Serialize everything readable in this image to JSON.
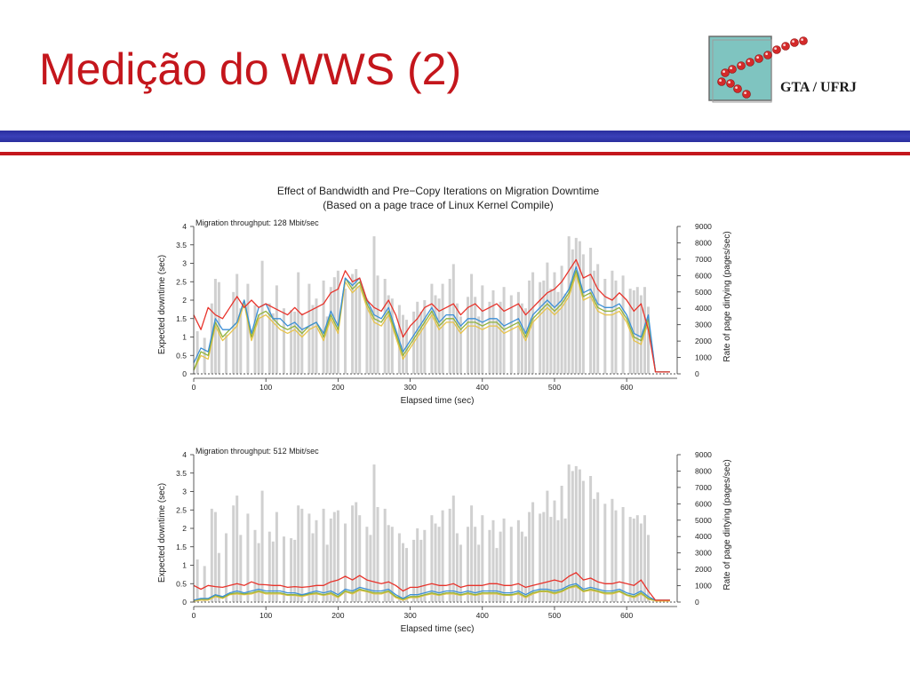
{
  "slide": {
    "title": "Medição do WWS (2)",
    "title_color": "#c4161c",
    "logo_text": "GTA / UFRJ",
    "logo_colors": {
      "square": "#7fc4c0",
      "dots": "#d42a2a"
    },
    "rule_colors": {
      "blue": "#2e34a8",
      "red": "#c4161c"
    }
  },
  "figure": {
    "title_line1": "Effect of Bandwidth and Pre−Copy Iterations on Migration Downtime",
    "title_line2": "(Based on a page trace of Linux Kernel Compile)"
  },
  "chart_data": [
    {
      "type": "line",
      "annotation": "Migration throughput: 128 Mbit/sec",
      "xlabel": "Elapsed time (sec)",
      "ylabel": "Expected downtime (sec)",
      "y2label": "Rate of page dirtying (pages/sec)",
      "xlim": [
        0,
        670
      ],
      "ylim": [
        0,
        4
      ],
      "y2lim": [
        0,
        9000
      ],
      "xticks": [
        "0",
        "100",
        "200",
        "300",
        "400",
        "500",
        "600"
      ],
      "yticks": [
        "0",
        "0.5",
        "1",
        "1.5",
        "2",
        "2.5",
        "3",
        "3.5",
        "4"
      ],
      "y2ticks": [
        "0",
        "1000",
        "2000",
        "3000",
        "4000",
        "5000",
        "6000",
        "7000",
        "8000",
        "9000"
      ],
      "colors": {
        "red": "#e8332b",
        "blue": "#3b8fd6",
        "green": "#8fb23a",
        "yellow": "#e8c34a",
        "bars": "#d0d0d0"
      },
      "x": [
        0,
        10,
        20,
        30,
        40,
        50,
        60,
        70,
        80,
        90,
        100,
        110,
        120,
        130,
        140,
        150,
        160,
        170,
        180,
        190,
        200,
        210,
        220,
        230,
        240,
        250,
        260,
        270,
        280,
        290,
        300,
        310,
        320,
        330,
        340,
        350,
        360,
        370,
        380,
        390,
        400,
        410,
        420,
        430,
        440,
        450,
        460,
        470,
        480,
        490,
        500,
        510,
        520,
        530,
        540,
        550,
        560,
        570,
        580,
        590,
        600,
        610,
        620,
        630,
        640,
        650,
        660
      ],
      "series": [
        {
          "name": "",
          "color": "red",
          "values": [
            1.6,
            1.2,
            1.8,
            1.6,
            1.5,
            1.8,
            2.1,
            1.8,
            2.0,
            1.8,
            1.9,
            1.8,
            1.7,
            1.6,
            1.8,
            1.6,
            1.7,
            1.8,
            1.9,
            2.2,
            2.3,
            2.8,
            2.5,
            2.6,
            2.0,
            1.8,
            1.7,
            2.0,
            1.6,
            1.0,
            1.3,
            1.5,
            1.8,
            1.9,
            1.7,
            1.8,
            1.9,
            1.6,
            1.8,
            1.9,
            1.7,
            1.8,
            1.9,
            1.7,
            1.8,
            1.9,
            1.6,
            1.8,
            2.0,
            2.2,
            2.3,
            2.5,
            2.8,
            3.1,
            2.6,
            2.7,
            2.3,
            2.1,
            2.0,
            2.2,
            2.0,
            1.7,
            1.9,
            1.2,
            0.05,
            0.05,
            0.05
          ]
        },
        {
          "name": "",
          "color": "blue",
          "values": [
            0.3,
            0.7,
            0.6,
            1.5,
            1.2,
            1.2,
            1.4,
            2.0,
            1.1,
            1.8,
            1.9,
            1.5,
            1.5,
            1.3,
            1.4,
            1.2,
            1.3,
            1.4,
            1.1,
            1.7,
            1.3,
            2.6,
            2.4,
            2.6,
            2.0,
            1.6,
            1.5,
            1.8,
            1.2,
            0.6,
            0.9,
            1.2,
            1.5,
            1.8,
            1.4,
            1.6,
            1.6,
            1.3,
            1.5,
            1.5,
            1.4,
            1.5,
            1.5,
            1.3,
            1.4,
            1.5,
            1.1,
            1.6,
            1.8,
            2.0,
            1.8,
            2.0,
            2.3,
            2.9,
            2.2,
            2.3,
            1.9,
            1.8,
            1.8,
            1.9,
            1.6,
            1.1,
            1.0,
            1.6,
            0.05,
            0.05,
            0.05
          ]
        },
        {
          "name": "",
          "color": "green",
          "values": [
            0.1,
            0.6,
            0.5,
            1.4,
            1.0,
            1.2,
            1.4,
            2.0,
            1.0,
            1.6,
            1.7,
            1.5,
            1.3,
            1.2,
            1.3,
            1.1,
            1.3,
            1.4,
            1.0,
            1.6,
            1.2,
            2.6,
            2.3,
            2.5,
            1.9,
            1.5,
            1.4,
            1.7,
            1.1,
            0.5,
            0.8,
            1.1,
            1.4,
            1.7,
            1.3,
            1.5,
            1.5,
            1.2,
            1.4,
            1.4,
            1.3,
            1.4,
            1.4,
            1.2,
            1.3,
            1.4,
            1.0,
            1.5,
            1.7,
            1.9,
            1.7,
            1.9,
            2.2,
            2.8,
            2.1,
            2.2,
            1.8,
            1.7,
            1.7,
            1.8,
            1.5,
            1.0,
            0.9,
            1.5,
            0.05,
            0.05,
            0.05
          ]
        },
        {
          "name": "",
          "color": "yellow",
          "values": [
            0.1,
            0.5,
            0.4,
            1.3,
            0.9,
            1.1,
            1.3,
            1.9,
            0.9,
            1.5,
            1.6,
            1.4,
            1.2,
            1.1,
            1.2,
            1.0,
            1.2,
            1.3,
            0.9,
            1.5,
            1.1,
            2.5,
            2.2,
            2.4,
            1.8,
            1.4,
            1.3,
            1.6,
            1.0,
            0.4,
            0.7,
            1.0,
            1.3,
            1.6,
            1.2,
            1.4,
            1.4,
            1.1,
            1.3,
            1.3,
            1.2,
            1.3,
            1.3,
            1.1,
            1.2,
            1.3,
            0.9,
            1.4,
            1.6,
            1.8,
            1.6,
            1.8,
            2.1,
            2.7,
            2.0,
            2.1,
            1.7,
            1.6,
            1.6,
            1.7,
            1.4,
            0.9,
            0.8,
            1.4,
            0.05,
            0.05,
            0.05
          ]
        }
      ],
      "bars_x": [
        5,
        15,
        25,
        30,
        35,
        45,
        55,
        60,
        65,
        75,
        85,
        90,
        95,
        105,
        110,
        115,
        125,
        135,
        140,
        145,
        150,
        160,
        165,
        170,
        180,
        185,
        190,
        195,
        200,
        210,
        220,
        225,
        230,
        240,
        245,
        250,
        255,
        265,
        270,
        275,
        285,
        290,
        295,
        305,
        310,
        315,
        320,
        330,
        335,
        340,
        345,
        355,
        360,
        365,
        370,
        380,
        385,
        390,
        395,
        400,
        410,
        415,
        420,
        425,
        430,
        440,
        450,
        455,
        460,
        465,
        470,
        480,
        485,
        490,
        495,
        500,
        505,
        510,
        515,
        520,
        525,
        530,
        535,
        540,
        550,
        555,
        560,
        570,
        580,
        585,
        595,
        605,
        610,
        615,
        620,
        625,
        630
      ],
      "bars": [
        2600,
        2200,
        4300,
        5800,
        5600,
        2400,
        5000,
        6100,
        4000,
        5500,
        4200,
        3600,
        6900,
        4300,
        3700,
        5400,
        4000,
        3900,
        3800,
        6200,
        3700,
        5500,
        4200,
        4600,
        5700,
        3500,
        5300,
        5900,
        6300,
        5200,
        6100,
        6400,
        5300,
        4600,
        4100,
        8400,
        6000,
        5800,
        4800,
        4600,
        4200,
        3600,
        3300,
        3800,
        4400,
        3800,
        4500,
        5500,
        4800,
        4600,
        5500,
        5800,
        6700,
        4300,
        3500,
        4700,
        6100,
        4700,
        3500,
        5400,
        4400,
        5100,
        3300,
        4400,
        5300,
        4800,
        5000,
        4300,
        4000,
        5700,
        6200,
        5600,
        5700,
        6800,
        5200,
        6200,
        5000,
        6600,
        4900,
        8400,
        7600,
        8300,
        8100,
        7300,
        7700,
        6300,
        6700,
        5800,
        6300,
        5700,
        6000,
        5200,
        5100,
        5300,
        4800,
        5300,
        4100
      ]
    },
    {
      "type": "line",
      "annotation": "Migration throughput: 512 Mbit/sec",
      "xlabel": "Elapsed time (sec)",
      "ylabel": "Expected downtime (sec)",
      "y2label": "Rate of page dirtying (pages/sec)",
      "xlim": [
        0,
        670
      ],
      "ylim": [
        0,
        4
      ],
      "y2lim": [
        0,
        9000
      ],
      "xticks": [
        "0",
        "100",
        "200",
        "300",
        "400",
        "500",
        "600"
      ],
      "yticks": [
        "0",
        "0.5",
        "1",
        "1.5",
        "2",
        "2.5",
        "3",
        "3.5",
        "4"
      ],
      "y2ticks": [
        "0",
        "1000",
        "2000",
        "3000",
        "4000",
        "5000",
        "6000",
        "7000",
        "8000",
        "9000"
      ],
      "colors": {
        "red": "#e8332b",
        "blue": "#3b8fd6",
        "green": "#8fb23a",
        "yellow": "#e8c34a",
        "bars": "#d0d0d0"
      },
      "x": [
        0,
        10,
        20,
        30,
        40,
        50,
        60,
        70,
        80,
        90,
        100,
        110,
        120,
        130,
        140,
        150,
        160,
        170,
        180,
        190,
        200,
        210,
        220,
        230,
        240,
        250,
        260,
        270,
        280,
        290,
        300,
        310,
        320,
        330,
        340,
        350,
        360,
        370,
        380,
        390,
        400,
        410,
        420,
        430,
        440,
        450,
        460,
        470,
        480,
        490,
        500,
        510,
        520,
        530,
        540,
        550,
        560,
        570,
        580,
        590,
        600,
        610,
        620,
        630,
        640,
        650,
        660
      ],
      "series": [
        {
          "name": "",
          "color": "red",
          "values": [
            0.45,
            0.35,
            0.45,
            0.42,
            0.4,
            0.45,
            0.5,
            0.45,
            0.55,
            0.48,
            0.47,
            0.45,
            0.45,
            0.4,
            0.42,
            0.4,
            0.42,
            0.45,
            0.45,
            0.55,
            0.6,
            0.7,
            0.6,
            0.72,
            0.6,
            0.55,
            0.5,
            0.55,
            0.45,
            0.3,
            0.4,
            0.4,
            0.45,
            0.5,
            0.45,
            0.45,
            0.5,
            0.4,
            0.45,
            0.45,
            0.45,
            0.5,
            0.5,
            0.45,
            0.45,
            0.5,
            0.4,
            0.45,
            0.5,
            0.55,
            0.6,
            0.55,
            0.7,
            0.8,
            0.6,
            0.65,
            0.55,
            0.5,
            0.5,
            0.55,
            0.5,
            0.45,
            0.6,
            0.3,
            0.05,
            0.05,
            0.05
          ]
        },
        {
          "name": "",
          "color": "blue",
          "values": [
            0.05,
            0.1,
            0.1,
            0.2,
            0.15,
            0.25,
            0.3,
            0.25,
            0.3,
            0.35,
            0.3,
            0.3,
            0.3,
            0.25,
            0.25,
            0.2,
            0.25,
            0.3,
            0.25,
            0.3,
            0.2,
            0.35,
            0.3,
            0.4,
            0.35,
            0.3,
            0.3,
            0.35,
            0.2,
            0.1,
            0.2,
            0.2,
            0.25,
            0.3,
            0.25,
            0.3,
            0.3,
            0.25,
            0.3,
            0.25,
            0.3,
            0.3,
            0.3,
            0.25,
            0.25,
            0.3,
            0.2,
            0.3,
            0.35,
            0.35,
            0.3,
            0.35,
            0.45,
            0.5,
            0.35,
            0.4,
            0.35,
            0.3,
            0.3,
            0.35,
            0.25,
            0.2,
            0.3,
            0.15,
            0.05,
            0.05,
            0.05
          ]
        },
        {
          "name": "",
          "color": "green",
          "values": [
            0.05,
            0.08,
            0.08,
            0.18,
            0.12,
            0.22,
            0.25,
            0.22,
            0.25,
            0.3,
            0.25,
            0.25,
            0.25,
            0.2,
            0.2,
            0.18,
            0.22,
            0.25,
            0.2,
            0.25,
            0.15,
            0.3,
            0.25,
            0.35,
            0.3,
            0.25,
            0.25,
            0.3,
            0.15,
            0.08,
            0.15,
            0.15,
            0.2,
            0.25,
            0.2,
            0.25,
            0.25,
            0.2,
            0.25,
            0.2,
            0.25,
            0.25,
            0.25,
            0.2,
            0.2,
            0.25,
            0.15,
            0.25,
            0.3,
            0.3,
            0.25,
            0.3,
            0.4,
            0.45,
            0.3,
            0.35,
            0.3,
            0.25,
            0.25,
            0.3,
            0.2,
            0.15,
            0.25,
            0.1,
            0.05,
            0.05,
            0.05
          ]
        },
        {
          "name": "",
          "color": "yellow",
          "values": [
            0.03,
            0.05,
            0.05,
            0.15,
            0.1,
            0.2,
            0.22,
            0.2,
            0.22,
            0.28,
            0.22,
            0.22,
            0.22,
            0.18,
            0.18,
            0.15,
            0.2,
            0.22,
            0.18,
            0.22,
            0.12,
            0.28,
            0.22,
            0.32,
            0.28,
            0.22,
            0.22,
            0.28,
            0.12,
            0.05,
            0.12,
            0.12,
            0.18,
            0.22,
            0.18,
            0.22,
            0.22,
            0.18,
            0.22,
            0.18,
            0.22,
            0.22,
            0.22,
            0.18,
            0.18,
            0.22,
            0.12,
            0.22,
            0.28,
            0.28,
            0.22,
            0.28,
            0.38,
            0.42,
            0.28,
            0.32,
            0.28,
            0.22,
            0.22,
            0.28,
            0.18,
            0.12,
            0.22,
            0.08,
            0.03,
            0.03,
            0.03
          ]
        }
      ],
      "bars_x": [
        5,
        15,
        25,
        30,
        35,
        45,
        55,
        60,
        65,
        75,
        85,
        90,
        95,
        105,
        110,
        115,
        125,
        135,
        140,
        145,
        150,
        160,
        165,
        170,
        180,
        185,
        190,
        195,
        200,
        210,
        220,
        225,
        230,
        240,
        245,
        250,
        255,
        265,
        270,
        275,
        285,
        290,
        295,
        305,
        310,
        315,
        320,
        330,
        335,
        340,
        345,
        355,
        360,
        365,
        370,
        380,
        385,
        390,
        395,
        400,
        410,
        415,
        420,
        425,
        430,
        440,
        450,
        455,
        460,
        465,
        470,
        480,
        485,
        490,
        495,
        500,
        505,
        510,
        515,
        520,
        525,
        530,
        535,
        540,
        550,
        555,
        560,
        570,
        580,
        585,
        595,
        605,
        610,
        615,
        620,
        625,
        630
      ],
      "bars": [
        2600,
        2200,
        5700,
        5500,
        3000,
        4200,
        5900,
        6500,
        4100,
        5400,
        4400,
        3600,
        6800,
        4300,
        3700,
        5500,
        4000,
        3900,
        3800,
        5900,
        5700,
        5400,
        4200,
        5000,
        5700,
        3500,
        5100,
        5500,
        5600,
        4800,
        5900,
        6100,
        5300,
        4600,
        4100,
        8400,
        5800,
        5700,
        4700,
        4600,
        4200,
        3600,
        3300,
        3800,
        4500,
        3800,
        4400,
        5300,
        4800,
        4600,
        5600,
        5700,
        6500,
        4200,
        3500,
        4600,
        5900,
        4600,
        3500,
        5300,
        4400,
        5000,
        3300,
        4300,
        5100,
        4600,
        5000,
        4300,
        4000,
        5500,
        6100,
        5400,
        5500,
        6800,
        5200,
        6200,
        5000,
        7100,
        5100,
        8400,
        8000,
        8300,
        8100,
        7400,
        7700,
        6300,
        6700,
        6000,
        6300,
        5600,
        5800,
        5200,
        5100,
        5300,
        4800,
        5300,
        4100
      ]
    }
  ]
}
